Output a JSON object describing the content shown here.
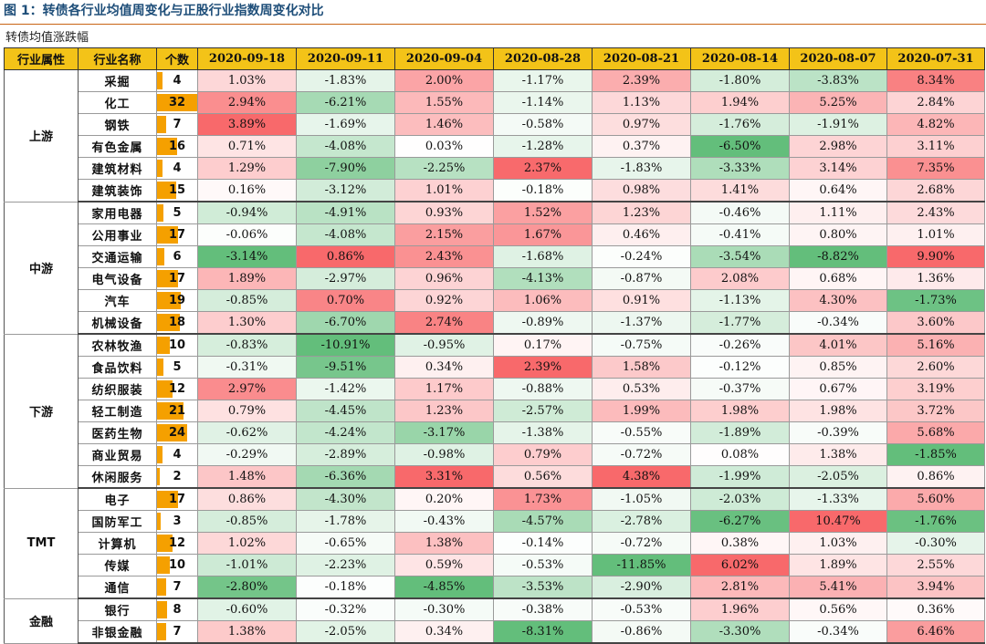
{
  "title": "图 1：转债各行业均值周变化与正股行业指数周变化对比",
  "caption": "转债均值涨跌幅",
  "headers": {
    "attr": "行业属性",
    "name": "行业名称",
    "count": "个数",
    "dates": [
      "2020-09-18",
      "2020-09-11",
      "2020-09-04",
      "2020-08-28",
      "2020-08-21",
      "2020-08-14",
      "2020-08-07",
      "2020-07-31"
    ]
  },
  "groups": [
    {
      "label": "上游",
      "rows": [
        {
          "name": "采掘",
          "count": "4",
          "values": [
            "1.03%",
            "-1.83%",
            "2.00%",
            "-1.17%",
            "2.39%",
            "-1.80%",
            "-3.83%",
            "8.34%"
          ]
        },
        {
          "name": "化工",
          "count": "32",
          "values": [
            "2.94%",
            "-6.21%",
            "1.55%",
            "-1.14%",
            "1.13%",
            "1.94%",
            "5.25%",
            "2.84%"
          ]
        },
        {
          "name": "钢铁",
          "count": "7",
          "values": [
            "3.89%",
            "-1.69%",
            "1.46%",
            "-0.58%",
            "0.97%",
            "-1.76%",
            "-1.91%",
            "4.82%"
          ]
        },
        {
          "name": "有色金属",
          "count": "16",
          "values": [
            "0.71%",
            "-4.08%",
            "0.03%",
            "-1.28%",
            "0.37%",
            "-6.50%",
            "2.98%",
            "3.11%"
          ]
        },
        {
          "name": "建筑材料",
          "count": "4",
          "values": [
            "1.29%",
            "-7.90%",
            "-2.25%",
            "2.37%",
            "-1.83%",
            "-3.33%",
            "3.14%",
            "7.35%"
          ]
        },
        {
          "name": "建筑装饰",
          "count": "15",
          "values": [
            "0.16%",
            "-3.12%",
            "1.01%",
            "-0.18%",
            "0.98%",
            "1.41%",
            "0.64%",
            "2.68%"
          ]
        }
      ]
    },
    {
      "label": "中游",
      "rows": [
        {
          "name": "家用电器",
          "count": "5",
          "values": [
            "-0.94%",
            "-4.91%",
            "0.93%",
            "1.52%",
            "1.23%",
            "-0.46%",
            "1.11%",
            "2.43%"
          ]
        },
        {
          "name": "公用事业",
          "count": "17",
          "values": [
            "-0.06%",
            "-4.08%",
            "2.15%",
            "1.67%",
            "0.46%",
            "-0.41%",
            "0.80%",
            "1.01%"
          ]
        },
        {
          "name": "交通运输",
          "count": "6",
          "values": [
            "-3.14%",
            "0.86%",
            "2.43%",
            "-1.68%",
            "-0.24%",
            "-3.54%",
            "-8.82%",
            "9.90%"
          ]
        },
        {
          "name": "电气设备",
          "count": "17",
          "values": [
            "1.89%",
            "-2.97%",
            "0.96%",
            "-4.13%",
            "-0.87%",
            "2.08%",
            "0.68%",
            "1.36%"
          ]
        },
        {
          "name": "汽车",
          "count": "19",
          "values": [
            "-0.85%",
            "0.70%",
            "0.92%",
            "1.06%",
            "0.91%",
            "-1.13%",
            "4.30%",
            "-1.73%"
          ]
        },
        {
          "name": "机械设备",
          "count": "18",
          "values": [
            "1.30%",
            "-6.70%",
            "2.74%",
            "-0.89%",
            "-1.37%",
            "-1.77%",
            "-0.34%",
            "3.60%"
          ]
        }
      ]
    },
    {
      "label": "下游",
      "rows": [
        {
          "name": "农林牧渔",
          "count": "10",
          "values": [
            "-0.83%",
            "-10.91%",
            "-0.95%",
            "0.17%",
            "-0.75%",
            "-0.26%",
            "4.01%",
            "5.16%"
          ]
        },
        {
          "name": "食品饮料",
          "count": "5",
          "values": [
            "-0.31%",
            "-9.51%",
            "0.34%",
            "2.39%",
            "1.58%",
            "-0.12%",
            "0.85%",
            "2.60%"
          ]
        },
        {
          "name": "纺织服装",
          "count": "12",
          "values": [
            "2.97%",
            "-1.42%",
            "1.17%",
            "-0.88%",
            "0.53%",
            "-0.37%",
            "0.67%",
            "3.19%"
          ]
        },
        {
          "name": "轻工制造",
          "count": "21",
          "values": [
            "0.79%",
            "-4.45%",
            "1.23%",
            "-2.57%",
            "1.99%",
            "1.98%",
            "1.98%",
            "3.72%"
          ]
        },
        {
          "name": "医药生物",
          "count": "24",
          "values": [
            "-0.62%",
            "-4.24%",
            "-3.17%",
            "-1.38%",
            "-0.55%",
            "-1.89%",
            "-0.39%",
            "5.68%"
          ]
        },
        {
          "name": "商业贸易",
          "count": "4",
          "values": [
            "-0.29%",
            "-2.89%",
            "-0.98%",
            "0.79%",
            "-0.72%",
            "0.08%",
            "1.38%",
            "-1.85%"
          ]
        },
        {
          "name": "休闲服务",
          "count": "2",
          "values": [
            "1.48%",
            "-6.36%",
            "3.31%",
            "0.56%",
            "4.38%",
            "-1.99%",
            "-2.05%",
            "0.86%"
          ]
        }
      ]
    },
    {
      "label": "TMT",
      "rows": [
        {
          "name": "电子",
          "count": "17",
          "values": [
            "0.86%",
            "-4.30%",
            "0.20%",
            "1.73%",
            "-1.05%",
            "-2.03%",
            "-1.33%",
            "5.60%"
          ]
        },
        {
          "name": "国防军工",
          "count": "3",
          "values": [
            "-0.85%",
            "-1.78%",
            "-0.43%",
            "-4.57%",
            "-2.78%",
            "-6.27%",
            "10.47%",
            "-1.76%"
          ]
        },
        {
          "name": "计算机",
          "count": "12",
          "values": [
            "1.02%",
            "-0.65%",
            "1.38%",
            "-0.14%",
            "-0.72%",
            "0.38%",
            "1.03%",
            "-0.30%"
          ]
        },
        {
          "name": "传媒",
          "count": "10",
          "values": [
            "-1.01%",
            "-2.23%",
            "0.59%",
            "-0.53%",
            "-11.85%",
            "6.02%",
            "1.89%",
            "2.55%"
          ]
        },
        {
          "name": "通信",
          "count": "7",
          "values": [
            "-2.80%",
            "-0.18%",
            "-4.85%",
            "-3.53%",
            "-2.90%",
            "2.81%",
            "5.41%",
            "3.94%"
          ]
        }
      ]
    },
    {
      "label": "金融",
      "rows": [
        {
          "name": "银行",
          "count": "8",
          "values": [
            "-0.60%",
            "-0.32%",
            "-0.30%",
            "-0.38%",
            "-0.53%",
            "1.96%",
            "0.56%",
            "0.36%"
          ]
        },
        {
          "name": "非银金融",
          "count": "7",
          "values": [
            "1.38%",
            "-2.05%",
            "0.34%",
            "-8.31%",
            "-0.86%",
            "-3.30%",
            "-0.34%",
            "6.46%"
          ]
        }
      ]
    }
  ],
  "colors": {
    "up_max": "#f8696b",
    "down_max": "#63be7b",
    "neutral": "#ffffff",
    "header_bg": "#f3c318",
    "count_bar": "#f5a000",
    "title_color": "#1e4e79"
  }
}
